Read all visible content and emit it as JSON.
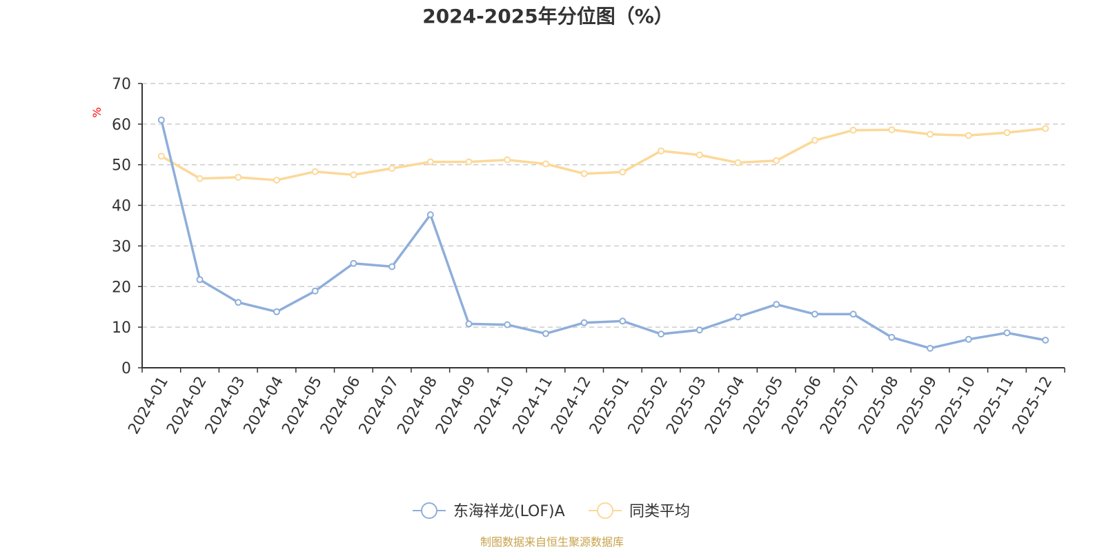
{
  "chart_data": {
    "type": "line",
    "title": "2024-2025年分位图（%）",
    "xlabel": "",
    "ylabel": "%",
    "ylim": [
      0,
      70
    ],
    "yticks": [
      0,
      10,
      20,
      30,
      40,
      50,
      60,
      70
    ],
    "grid": "horizontal-dashed",
    "categories": [
      "2024-01",
      "2024-02",
      "2024-03",
      "2024-04",
      "2024-05",
      "2024-06",
      "2024-07",
      "2024-08",
      "2024-09",
      "2024-10",
      "2024-11",
      "2024-12",
      "2025-01",
      "2025-02",
      "2025-03",
      "2025-04",
      "2025-05",
      "2025-06",
      "2025-07",
      "2025-08",
      "2025-09",
      "2025-10",
      "2025-11",
      "2025-12"
    ],
    "series": [
      {
        "name": "东海祥龙(LOF)A",
        "color": "#8eaedb",
        "values": [
          61.0,
          21.7,
          16.1,
          13.8,
          18.9,
          25.7,
          24.9,
          37.7,
          10.8,
          10.6,
          8.4,
          11.1,
          11.5,
          8.3,
          9.3,
          12.5,
          15.6,
          13.2,
          13.2,
          7.5,
          4.8,
          7.0,
          8.6,
          6.8
        ]
      },
      {
        "name": "同类平均",
        "color": "#fcd898",
        "values": [
          52.1,
          46.6,
          46.9,
          46.2,
          48.3,
          47.5,
          49.1,
          50.7,
          50.7,
          51.2,
          50.2,
          47.8,
          48.2,
          53.4,
          52.4,
          50.5,
          51.0,
          56.0,
          58.5,
          58.6,
          57.5,
          57.2,
          57.9,
          58.9
        ]
      }
    ],
    "legend_position": "bottom-center",
    "source": "制图数据来自恒生聚源数据库"
  }
}
